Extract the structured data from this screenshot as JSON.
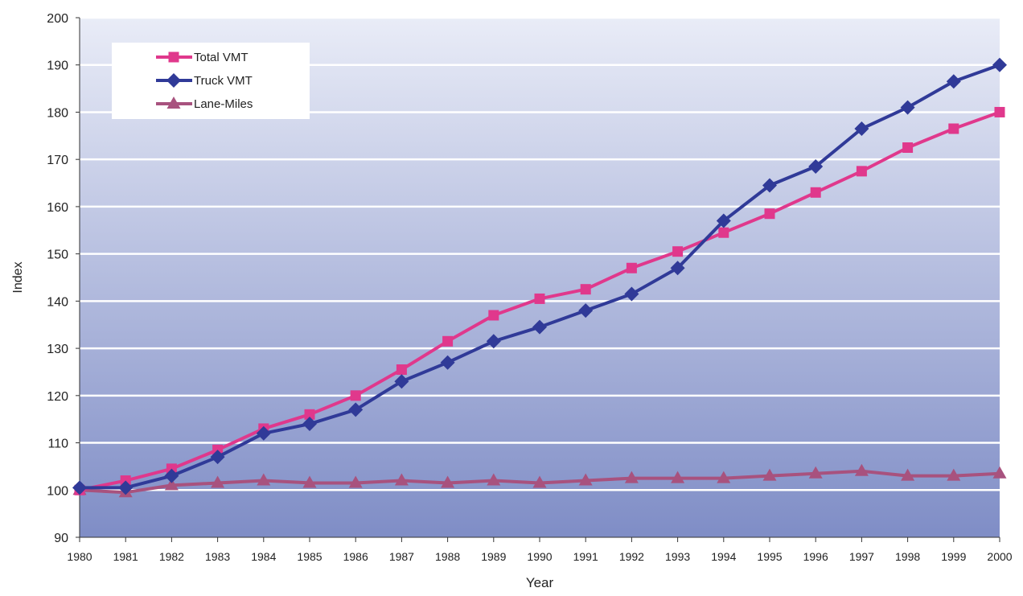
{
  "chart_data": {
    "type": "line",
    "title": "",
    "xlabel": "Year",
    "ylabel": "Index",
    "ylim": [
      90,
      200
    ],
    "yticks": [
      90,
      100,
      110,
      120,
      130,
      140,
      150,
      160,
      170,
      180,
      190,
      200
    ],
    "grid": true,
    "legend_position": "top-left",
    "background": {
      "top_color": "#e9ecf7",
      "bottom_color": "#7f8dc6",
      "gridline_color": "#ffffff"
    },
    "categories": [
      "1980",
      "1981",
      "1982",
      "1983",
      "1984",
      "1985",
      "1986",
      "1987",
      "1988",
      "1989",
      "1990",
      "1991",
      "1992",
      "1993",
      "1994",
      "1995",
      "1996",
      "1997",
      "1998",
      "1999",
      "2000"
    ],
    "series": [
      {
        "name": "Total VMT",
        "color": "#e0388c",
        "marker": "square",
        "values": [
          100,
          102,
          104.5,
          108.5,
          113,
          116,
          120,
          125.5,
          131.5,
          137,
          140.5,
          142.5,
          147,
          150.5,
          154.5,
          158.5,
          163,
          167.5,
          172.5,
          176.5,
          180
        ]
      },
      {
        "name": "Truck VMT",
        "color": "#303a98",
        "marker": "diamond",
        "values": [
          100.5,
          100.5,
          103,
          107,
          112,
          114,
          117,
          123,
          127,
          131.5,
          134.5,
          138,
          141.5,
          147,
          157,
          164.5,
          168.5,
          176.5,
          181,
          186.5,
          190
        ]
      },
      {
        "name": "Lane-Miles",
        "color": "#a8527e",
        "marker": "triangle",
        "values": [
          100,
          99.5,
          101,
          101.5,
          102,
          101.5,
          101.5,
          102,
          101.5,
          102,
          101.5,
          102,
          102.5,
          102.5,
          102.5,
          103,
          103.5,
          104,
          103,
          103,
          103.5
        ]
      }
    ]
  }
}
